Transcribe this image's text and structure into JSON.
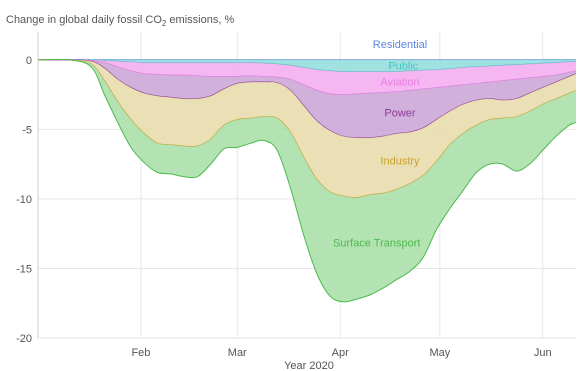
{
  "chart_data": {
    "type": "area",
    "title_prefix": "Change in global daily fossil CO",
    "title_sub": "2",
    "title_suffix": " emissions, %",
    "xlabel": "Year 2020",
    "ylabel": "",
    "x_ticks": [
      {
        "label": "Feb",
        "day": 32
      },
      {
        "label": "Mar",
        "day": 61
      },
      {
        "label": "Apr",
        "day": 92
      },
      {
        "label": "May",
        "day": 122
      },
      {
        "label": "Jun",
        "day": 153
      }
    ],
    "xlim": [
      1,
      163
    ],
    "ylim": [
      -20,
      2
    ],
    "y_ticks": [
      0,
      -5,
      -10,
      -15,
      -20
    ],
    "grid": true,
    "x_days": [
      1,
      10,
      17,
      21,
      25,
      29,
      33,
      37,
      41,
      45,
      49,
      53,
      57,
      61,
      65,
      69,
      73,
      77,
      81,
      85,
      89,
      93,
      97,
      101,
      105,
      109,
      113,
      117,
      121,
      125,
      129,
      133,
      137,
      141,
      145,
      149,
      153,
      157,
      161,
      163
    ],
    "series": [
      {
        "name": "Residential",
        "color": "#7fa3ef",
        "line": "#5b86e0",
        "cum": [
          0,
          0,
          0,
          0,
          0,
          0,
          0,
          0,
          0,
          0,
          0,
          0,
          0,
          0,
          0,
          0,
          0,
          0,
          0,
          0,
          0,
          0,
          0,
          0,
          0,
          0,
          0,
          0,
          0,
          0,
          0,
          0,
          0,
          0,
          0,
          0,
          0,
          0,
          0,
          0
        ]
      },
      {
        "name": "Public",
        "color": "#8fdcdc",
        "line": "#4cc2c2",
        "cum": [
          0,
          0,
          0,
          -0.05,
          -0.1,
          -0.15,
          -0.2,
          -0.2,
          -0.2,
          -0.2,
          -0.2,
          -0.2,
          -0.2,
          -0.2,
          -0.2,
          -0.25,
          -0.3,
          -0.4,
          -0.55,
          -0.7,
          -0.8,
          -0.85,
          -0.85,
          -0.85,
          -0.85,
          -0.85,
          -0.8,
          -0.75,
          -0.7,
          -0.65,
          -0.55,
          -0.5,
          -0.45,
          -0.4,
          -0.35,
          -0.3,
          -0.25,
          -0.2,
          -0.15,
          -0.1
        ]
      },
      {
        "name": "Aviation",
        "color": "#f3a9f0",
        "line": "#e87de3",
        "cum": [
          0,
          0,
          -0.05,
          -0.2,
          -0.5,
          -0.8,
          -1.0,
          -1.05,
          -1.1,
          -1.1,
          -1.15,
          -1.2,
          -1.2,
          -1.2,
          -1.15,
          -1.2,
          -1.25,
          -1.4,
          -1.8,
          -2.2,
          -2.45,
          -2.5,
          -2.45,
          -2.4,
          -2.35,
          -2.3,
          -2.2,
          -2.1,
          -2.0,
          -1.9,
          -1.8,
          -1.7,
          -1.6,
          -1.5,
          -1.4,
          -1.3,
          -1.2,
          -1.1,
          -0.9,
          -0.8
        ]
      },
      {
        "name": "Power",
        "color": "#c9a3d6",
        "line": "#8c3c96",
        "cum": [
          0,
          0,
          -0.1,
          -0.6,
          -1.4,
          -2.0,
          -2.4,
          -2.6,
          -2.7,
          -2.8,
          -2.8,
          -2.6,
          -2.1,
          -1.7,
          -1.6,
          -1.6,
          -1.65,
          -2.2,
          -3.3,
          -4.4,
          -5.1,
          -5.5,
          -5.6,
          -5.6,
          -5.5,
          -5.3,
          -5.2,
          -4.9,
          -4.3,
          -3.7,
          -3.2,
          -2.9,
          -2.8,
          -2.9,
          -2.8,
          -2.4,
          -2.0,
          -1.6,
          -1.2,
          -1.0
        ]
      },
      {
        "name": "Industry",
        "color": "#e8d9a8",
        "line": "#c9a330",
        "cum": [
          0,
          0,
          -0.3,
          -1.5,
          -3.0,
          -4.3,
          -5.3,
          -6.0,
          -6.1,
          -6.2,
          -6.2,
          -5.7,
          -4.7,
          -4.3,
          -4.2,
          -4.1,
          -4.2,
          -5.2,
          -7.0,
          -8.6,
          -9.5,
          -9.8,
          -9.9,
          -9.7,
          -9.6,
          -9.3,
          -8.9,
          -8.3,
          -7.3,
          -6.1,
          -5.3,
          -4.7,
          -4.3,
          -4.2,
          -4.1,
          -3.7,
          -3.2,
          -2.8,
          -2.4,
          -2.2
        ]
      },
      {
        "name": "Surface Transport",
        "color": "#a6dea6",
        "line": "#4cba4c",
        "cum": [
          0,
          0,
          -0.5,
          -2.5,
          -4.5,
          -6.3,
          -7.4,
          -8.1,
          -8.2,
          -8.4,
          -8.4,
          -7.5,
          -6.4,
          -6.3,
          -6.0,
          -5.8,
          -6.5,
          -9.2,
          -12.6,
          -15.4,
          -17.0,
          -17.4,
          -17.2,
          -16.9,
          -16.4,
          -15.8,
          -15.2,
          -14.2,
          -12.2,
          -10.7,
          -9.4,
          -8.1,
          -7.5,
          -7.5,
          -8.0,
          -7.5,
          -6.5,
          -5.5,
          -4.7,
          -4.5
        ]
      }
    ]
  }
}
